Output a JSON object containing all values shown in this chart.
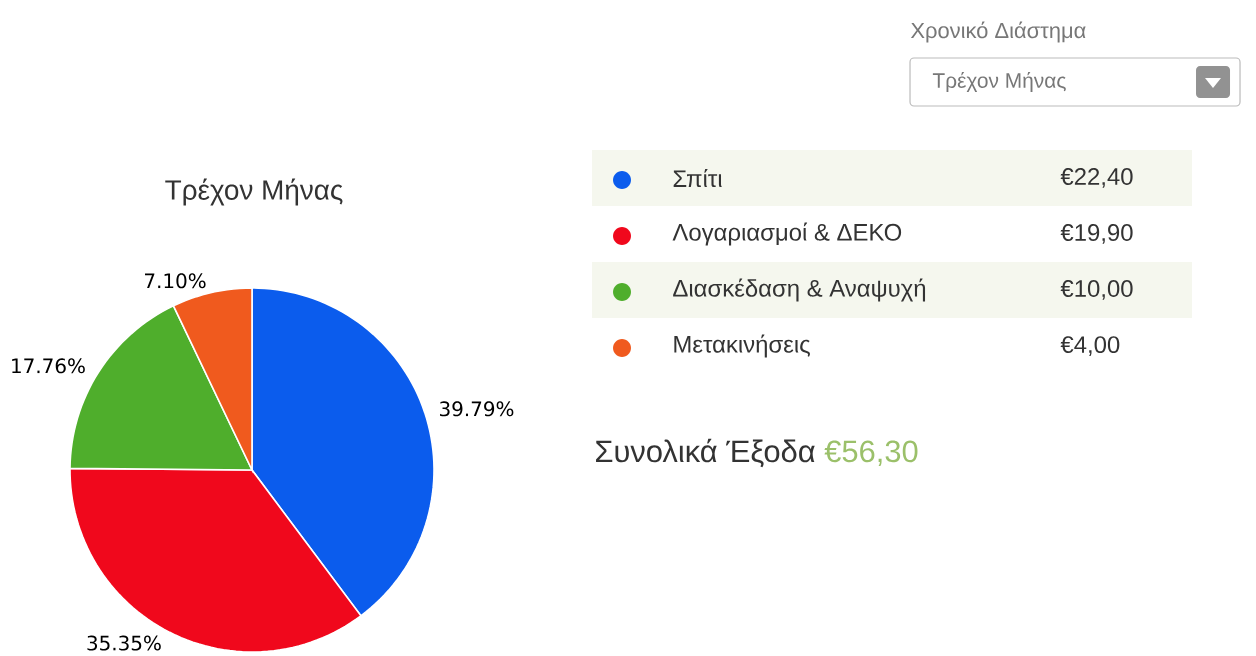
{
  "chart_data": {
    "type": "pie",
    "title": "Τρέχον Μήνας",
    "categories": [
      "Σπίτι",
      "Λογαριασμοί & ΔΕΚΟ",
      "Διασκέδαση & Αναψυχή",
      "Μετακινήσεις"
    ],
    "values": [
      39.79,
      35.35,
      17.76,
      7.1
    ],
    "value_labels": [
      "39.79%",
      "35.35%",
      "17.76%",
      "7.10%"
    ],
    "colors": [
      "#0b5ced",
      "#f0081c",
      "#4fae2c",
      "#f05a1e"
    ],
    "legend": "right",
    "annotations": [
      "Χρονικό Διάστημα",
      "Τρέχον Μήνας",
      "€22,40",
      "€19,90",
      "€10,00",
      "€4,00",
      "Συνολικά Έξοδα",
      "€56,30"
    ]
  }
}
